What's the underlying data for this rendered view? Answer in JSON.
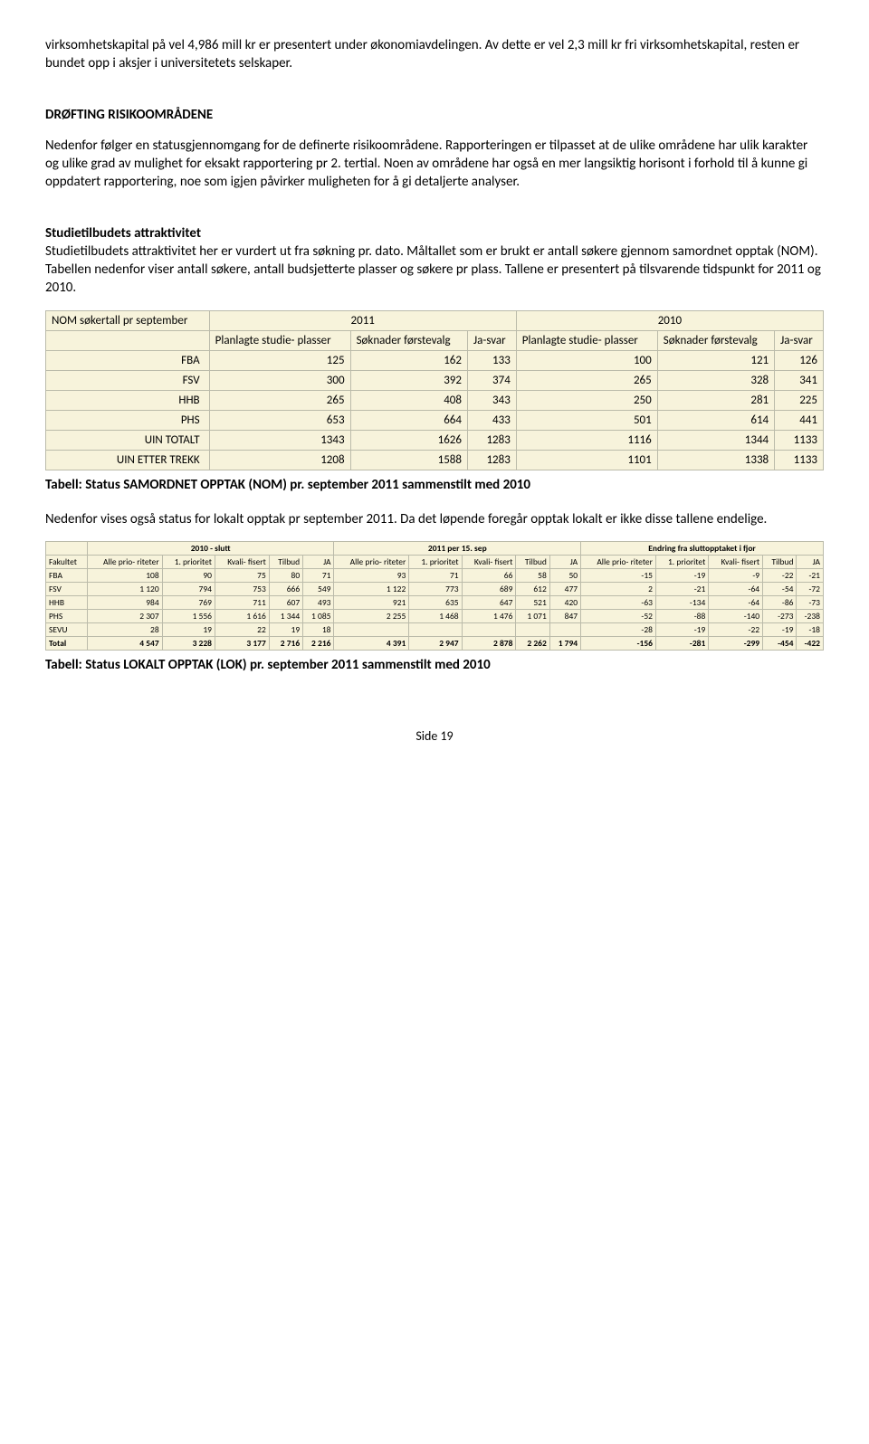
{
  "para1": "virksomhetskapital på vel 4,986 mill kr er presentert under økonomiavdelingen. Av dette er vel 2,3 mill kr fri virksomhetskapital, resten er bundet opp i aksjer i universitetets selskaper.",
  "heading1": "DRØFTING RISIKOOMRÅDENE",
  "para2": "Nedenfor følger en statusgjennomgang for de definerte risikoområdene. Rapporteringen er tilpasset at de ulike områdene har ulik karakter og ulike grad av mulighet for eksakt rapportering pr 2. tertial. Noen av områdene har også en mer langsiktig horisont i forhold til å kunne gi oppdatert rapportering, noe som igjen påvirker muligheten for å gi detaljerte analyser.",
  "heading2": "Studietilbudets attraktivitet",
  "para3": "Studietilbudets attraktivitet her er vurdert ut fra søkning pr. dato. Måltallet som er brukt er antall søkere gjennom samordnet opptak (NOM). Tabellen nedenfor viser antall søkere, antall budsjetterte plasser og søkere pr plass. Tallene er presentert på tilsvarende tidspunkt for 2011 og 2010.",
  "table1": {
    "title": "NOM søkertall pr september",
    "years": [
      "2011",
      "2010"
    ],
    "col_labels": [
      "Planlagte studie- plasser",
      "Søknader førstevalg",
      "Ja-svar"
    ],
    "rows": [
      {
        "label": "FBA",
        "v": [
          125,
          162,
          133,
          100,
          121,
          126
        ]
      },
      {
        "label": "FSV",
        "v": [
          300,
          392,
          374,
          265,
          328,
          341
        ]
      },
      {
        "label": "HHB",
        "v": [
          265,
          408,
          343,
          250,
          281,
          225
        ]
      },
      {
        "label": "PHS",
        "v": [
          653,
          664,
          433,
          501,
          614,
          441
        ]
      },
      {
        "label": "UIN TOTALT",
        "v": [
          1343,
          1626,
          1283,
          1116,
          1344,
          1133
        ]
      },
      {
        "label": "UIN  ETTER TREKK",
        "v": [
          1208,
          1588,
          1283,
          1101,
          1338,
          1133
        ]
      }
    ]
  },
  "caption1": "Tabell: Status SAMORDNET OPPTAK (NOM) pr. september 2011 sammenstilt med 2010",
  "para4": "Nedenfor vises også status for lokalt opptak pr september 2011. Da det løpende foregår opptak lokalt er ikke disse tallene endelige.",
  "table2": {
    "groups": [
      "2010 - slutt",
      "2011 per 15. sep",
      "Endring fra sluttopptaket i fjor"
    ],
    "col_labels": [
      "Fakultet",
      "Alle prio- riteter",
      "1. prioritet",
      "Kvali- fisert",
      "Tilbud",
      "JA"
    ],
    "rows": [
      {
        "label": "FBA",
        "v": [
          "108",
          "90",
          "75",
          "80",
          "71",
          "93",
          "71",
          "66",
          "58",
          "50",
          "-15",
          "-19",
          "-9",
          "-22",
          "-21"
        ]
      },
      {
        "label": "FSV",
        "v": [
          "1 120",
          "794",
          "753",
          "666",
          "549",
          "1 122",
          "773",
          "689",
          "612",
          "477",
          "2",
          "-21",
          "-64",
          "-54",
          "-72"
        ]
      },
      {
        "label": "HHB",
        "v": [
          "984",
          "769",
          "711",
          "607",
          "493",
          "921",
          "635",
          "647",
          "521",
          "420",
          "-63",
          "-134",
          "-64",
          "-86",
          "-73"
        ]
      },
      {
        "label": "PHS",
        "v": [
          "2 307",
          "1 556",
          "1 616",
          "1 344",
          "1 085",
          "2 255",
          "1 468",
          "1 476",
          "1 071",
          "847",
          "-52",
          "-88",
          "-140",
          "-273",
          "-238"
        ]
      },
      {
        "label": "SEVU",
        "v": [
          "28",
          "19",
          "22",
          "19",
          "18",
          "",
          "",
          "",
          "",
          "",
          "-28",
          "-19",
          "-22",
          "-19",
          "-18"
        ]
      },
      {
        "label": "Total",
        "v": [
          "4 547",
          "3 228",
          "3 177",
          "2 716",
          "2 216",
          "4 391",
          "2 947",
          "2 878",
          "2 262",
          "1 794",
          "-156",
          "-281",
          "-299",
          "-454",
          "-422"
        ]
      }
    ]
  },
  "caption2": "Tabell: Status LOKALT OPPTAK (LOK) pr. september 2011 sammenstilt med 2010",
  "footer": "Side 19"
}
